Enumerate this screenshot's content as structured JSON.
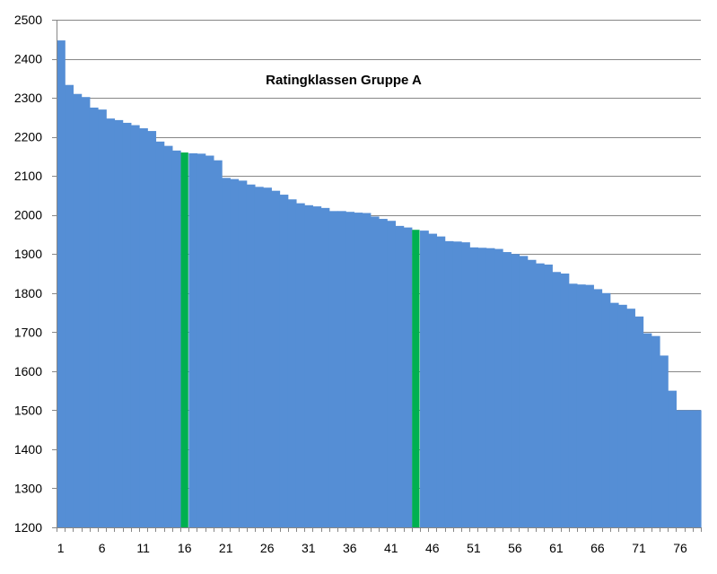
{
  "chart_data": {
    "type": "bar",
    "title": "Ratingklassen Gruppe A",
    "xlabel": "",
    "ylabel": "",
    "ylim": [
      1200,
      2500
    ],
    "y_ticks": [
      1200,
      1300,
      1400,
      1500,
      1600,
      1700,
      1800,
      1900,
      2000,
      2100,
      2200,
      2300,
      2400,
      2500
    ],
    "x_tick_labels": [
      "1",
      "6",
      "11",
      "16",
      "21",
      "26",
      "31",
      "36",
      "41",
      "46",
      "51",
      "56",
      "61",
      "66",
      "71",
      "76"
    ],
    "x_tick_positions": [
      1,
      6,
      11,
      16,
      21,
      26,
      31,
      36,
      41,
      46,
      51,
      56,
      61,
      66,
      71,
      76
    ],
    "grid": "horizontal",
    "legend": "none",
    "colors": {
      "bar": "#558ED5",
      "highlight": "#00B050",
      "grid": "#868686",
      "axis": "#868686"
    },
    "highlighted_ranks": [
      16,
      44
    ],
    "categories": [
      1,
      2,
      3,
      4,
      5,
      6,
      7,
      8,
      9,
      10,
      11,
      12,
      13,
      14,
      15,
      16,
      17,
      18,
      19,
      20,
      21,
      22,
      23,
      24,
      25,
      26,
      27,
      28,
      29,
      30,
      31,
      32,
      33,
      34,
      35,
      36,
      37,
      38,
      39,
      40,
      41,
      42,
      43,
      44,
      45,
      46,
      47,
      48,
      49,
      50,
      51,
      52,
      53,
      54,
      55,
      56,
      57,
      58,
      59,
      60,
      61,
      62,
      63,
      64,
      65,
      66,
      67,
      68,
      69,
      70,
      71,
      72,
      73,
      74,
      75,
      76,
      77,
      78
    ],
    "values": [
      2447,
      2333,
      2310,
      2302,
      2275,
      2270,
      2247,
      2243,
      2236,
      2230,
      2222,
      2215,
      2188,
      2177,
      2165,
      2160,
      2158,
      2157,
      2152,
      2140,
      2095,
      2092,
      2088,
      2078,
      2072,
      2070,
      2062,
      2052,
      2040,
      2030,
      2025,
      2022,
      2018,
      2010,
      2010,
      2008,
      2006,
      2005,
      1996,
      1990,
      1985,
      1972,
      1968,
      1962,
      1960,
      1952,
      1945,
      1933,
      1932,
      1930,
      1917,
      1916,
      1915,
      1913,
      1905,
      1900,
      1895,
      1885,
      1876,
      1873,
      1854,
      1850,
      1824,
      1822,
      1821,
      1810,
      1800,
      1775,
      1770,
      1760,
      1740,
      1697,
      1690,
      1640,
      1550,
      1500,
      1500,
      1500
    ]
  }
}
